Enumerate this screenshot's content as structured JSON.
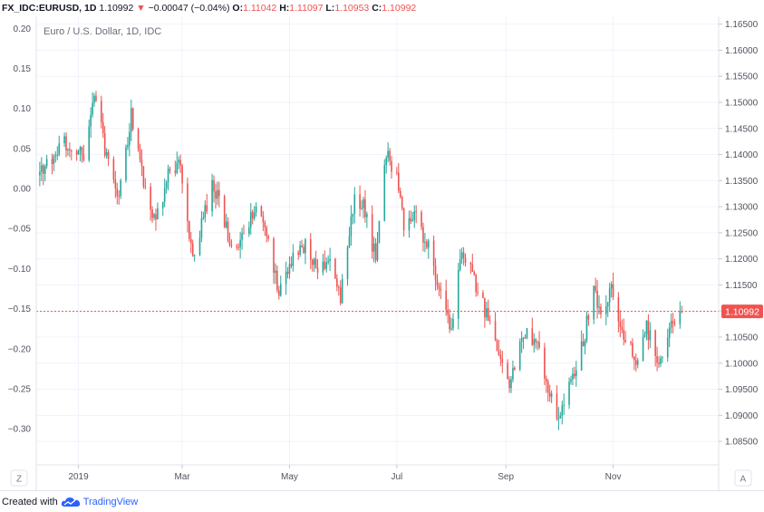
{
  "header": {
    "symbol": "FX_IDC:EURUSD, 1D",
    "last": "1.10992",
    "change_arrow": "▼",
    "change": "−0.00047 (−0.04%)",
    "o_label": "O:",
    "o_value": "1.11042",
    "h_label": "H:",
    "h_value": "1.11097",
    "l_label": "L:",
    "l_value": "1.10953",
    "c_label": "C:",
    "c_value": "1.10992"
  },
  "footer": {
    "text": "Created with",
    "brand": "TradingView"
  },
  "buttons": {
    "left": "Z",
    "right": "A"
  },
  "colors": {
    "up": "#26a69a",
    "down": "#ef5350",
    "price_line": "#ef5350",
    "grid": "#f0f3fa"
  },
  "chart_data": {
    "type": "candlestick",
    "title": "Euro / U.S. Dollar, 1D, IDC",
    "last_price_label": "1.10992",
    "last_price": 1.10992,
    "right_axis": {
      "ticks": [
        "1.16500",
        "1.16000",
        "1.15500",
        "1.15000",
        "1.14500",
        "1.14000",
        "1.13500",
        "1.13000",
        "1.12500",
        "1.12000",
        "1.11500",
        "1.11000",
        "1.10500",
        "1.10000",
        "1.09500",
        "1.09000",
        "1.08500"
      ],
      "range": [
        1.0805,
        1.1665
      ]
    },
    "left_axis": {
      "ticks": [
        "0.20",
        "0.15",
        "0.10",
        "0.05",
        "0.00",
        "−0.05",
        "−0.10",
        "−0.15",
        "−0.20",
        "−0.25",
        "−0.30"
      ],
      "range": [
        -0.345,
        0.215
      ]
    },
    "x_axis": {
      "labels": [
        "2019",
        "Mar",
        "May",
        "Jul",
        "Sep",
        "Nov"
      ],
      "label_dates": [
        "2019-01-01",
        "2019-03-01",
        "2019-05-01",
        "2019-07-01",
        "2019-09-01",
        "2019-11-01"
      ],
      "range": [
        "2018-12-08",
        "2019-12-31"
      ]
    },
    "start_date": "2018-12-10",
    "close_path": [
      [
        "2018-12-10",
        1.136
      ],
      [
        "2018-12-24",
        1.142
      ],
      [
        "2019-01-04",
        1.14
      ],
      [
        "2019-01-10",
        1.152
      ],
      [
        "2019-01-16",
        1.141
      ],
      [
        "2019-01-24",
        1.132
      ],
      [
        "2019-01-31",
        1.148
      ],
      [
        "2019-02-08",
        1.133
      ],
      [
        "2019-02-14",
        1.127
      ],
      [
        "2019-02-21",
        1.136
      ],
      [
        "2019-02-28",
        1.138
      ],
      [
        "2019-03-07",
        1.12
      ],
      [
        "2019-03-11",
        1.125
      ],
      [
        "2019-03-18",
        1.135
      ],
      [
        "2019-03-22",
        1.131
      ],
      [
        "2019-03-29",
        1.122
      ],
      [
        "2019-04-05",
        1.124
      ],
      [
        "2019-04-12",
        1.13
      ],
      [
        "2019-04-18",
        1.124
      ],
      [
        "2019-04-25",
        1.114
      ],
      [
        "2019-05-03",
        1.12
      ],
      [
        "2019-05-10",
        1.123
      ],
      [
        "2019-05-17",
        1.118
      ],
      [
        "2019-05-24",
        1.12
      ],
      [
        "2019-05-30",
        1.113
      ],
      [
        "2019-06-07",
        1.132
      ],
      [
        "2019-06-12",
        1.13
      ],
      [
        "2019-06-19",
        1.12
      ],
      [
        "2019-06-25",
        1.14
      ],
      [
        "2019-07-01",
        1.136
      ],
      [
        "2019-07-05",
        1.126
      ],
      [
        "2019-07-12",
        1.128
      ],
      [
        "2019-07-19",
        1.122
      ],
      [
        "2019-07-26",
        1.113
      ],
      [
        "2019-08-01",
        1.106
      ],
      [
        "2019-08-06",
        1.121
      ],
      [
        "2019-08-13",
        1.117
      ],
      [
        "2019-08-21",
        1.109
      ],
      [
        "2019-08-30",
        1.099
      ],
      [
        "2019-09-03",
        1.096
      ],
      [
        "2019-09-10",
        1.104
      ],
      [
        "2019-09-13",
        1.107
      ],
      [
        "2019-09-20",
        1.102
      ],
      [
        "2019-09-26",
        1.094
      ],
      [
        "2019-10-01",
        1.09
      ],
      [
        "2019-10-08",
        1.097
      ],
      [
        "2019-10-15",
        1.104
      ],
      [
        "2019-10-21",
        1.115
      ],
      [
        "2019-10-25",
        1.109
      ],
      [
        "2019-10-31",
        1.115
      ],
      [
        "2019-11-07",
        1.104
      ],
      [
        "2019-11-14",
        1.101
      ],
      [
        "2019-11-20",
        1.107
      ],
      [
        "2019-11-26",
        1.101
      ],
      [
        "2019-11-29",
        1.102
      ],
      [
        "2019-12-05",
        1.108
      ],
      [
        "2019-12-10",
        1.11
      ]
    ]
  }
}
